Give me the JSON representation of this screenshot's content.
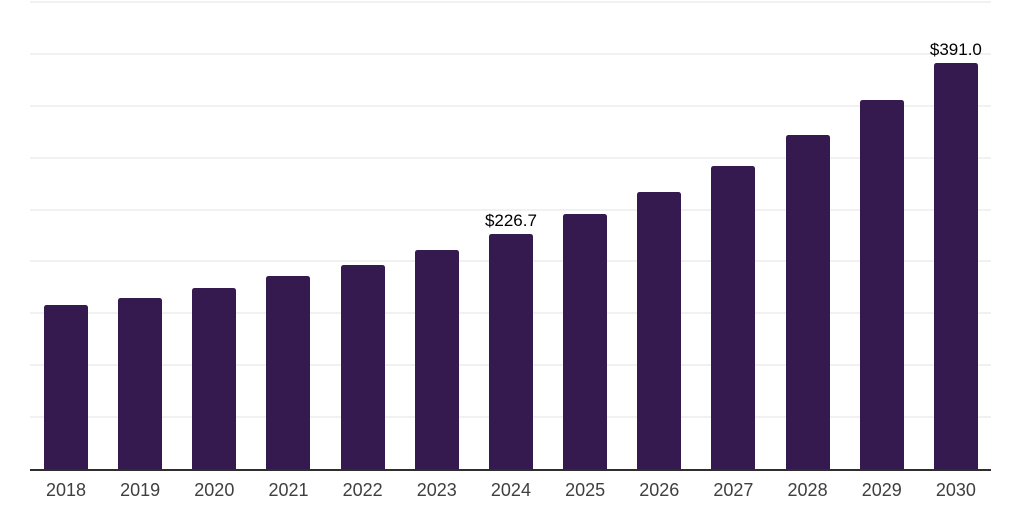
{
  "chart_data": {
    "type": "bar",
    "categories": [
      "2018",
      "2019",
      "2020",
      "2021",
      "2022",
      "2023",
      "2024",
      "2025",
      "2026",
      "2027",
      "2028",
      "2029",
      "2030"
    ],
    "values": [
      157.9,
      165.1,
      174.7,
      185.6,
      196.8,
      211.3,
      226.7,
      245.9,
      267.4,
      292.1,
      322.0,
      355.6,
      391.0
    ],
    "data_labels": {
      "2024": "$226.7",
      "2030": "$391.0"
    },
    "title": "",
    "xlabel": "",
    "ylabel": "",
    "ylim": [
      0,
      450
    ],
    "gridline_step": 50,
    "grid": "horizontal-only",
    "y_tick_labels_visible": false,
    "legend": "none"
  },
  "styles": {
    "bar_color": "#351a4f",
    "gridline_color": "#f1f1f1",
    "axis_line_color": "#2e2e2e",
    "tick_label_color": "#3f3f3f",
    "data_label_color": "#000000",
    "background_color": "#ffffff"
  }
}
